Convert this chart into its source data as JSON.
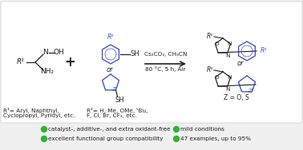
{
  "bg_color": "#f0f0f0",
  "bullet_color": "#2db52d",
  "bullet_items_row1_left": "catalyst-, additive-, and extra oxidant-free",
  "bullet_items_row1_right": "mild conditions",
  "bullet_items_row2_left": "excellent functional group compatibility",
  "bullet_items_row2_right": "47 examples, up to 95%",
  "reaction_arrow_text_top": "Cs₂CO₃, CH₃CN",
  "reaction_arrow_text_bot": "80 °C, 5 h, Air",
  "r1_line1": "R¹= Aryl, Naphthyl,",
  "r1_line2": "Cyclopropyl, Pyridyl, etc.",
  "r2_line1": "R²= H, Me, OMe, ᵗBu,",
  "r2_line2": "F, Cl, Br, CF₃, etc.",
  "z_label": "Z = O, S",
  "blue_color": "#4455cc",
  "black_color": "#222222",
  "gray_color": "#444444"
}
